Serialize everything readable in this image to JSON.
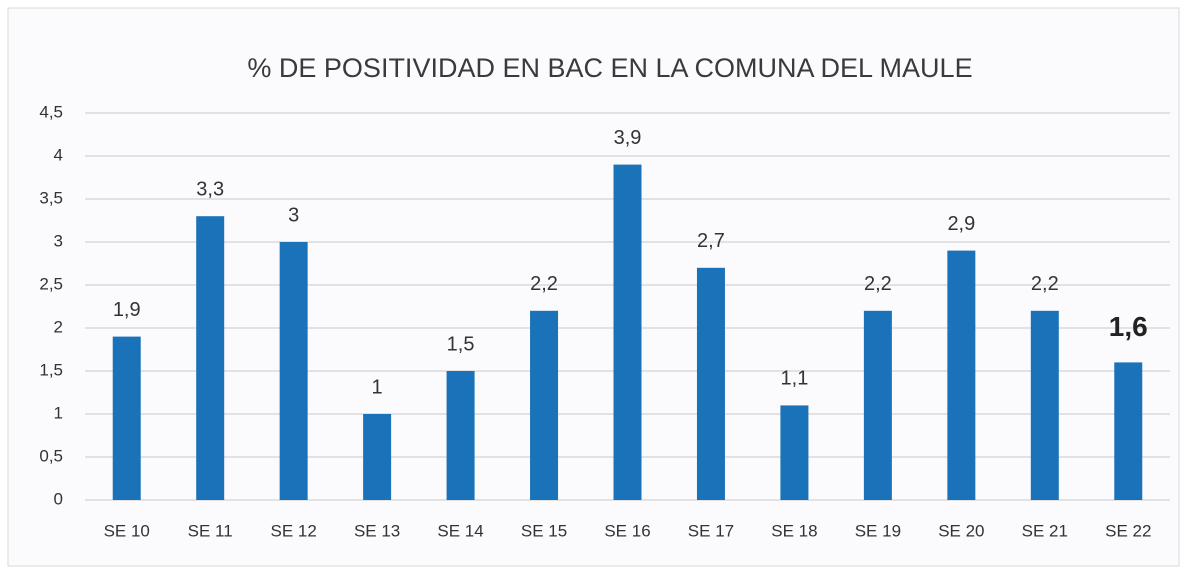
{
  "chart_data": {
    "type": "bar",
    "title": "% DE POSITIVIDAD EN BAC EN LA COMUNA DEL MAULE",
    "categories": [
      "SE 10",
      "SE 11",
      "SE 12",
      "SE 13",
      "SE 14",
      "SE 15",
      "SE 16",
      "SE 17",
      "SE 18",
      "SE 19",
      "SE 20",
      "SE 21",
      "SE 22"
    ],
    "values": [
      1.9,
      3.3,
      3,
      1,
      1.5,
      2.2,
      3.9,
      2.7,
      1.1,
      2.2,
      2.9,
      2.2,
      1.6
    ],
    "value_labels": [
      "1,9",
      "3,3",
      "3",
      "1",
      "1,5",
      "2,2",
      "3,9",
      "2,7",
      "1,1",
      "2,2",
      "2,9",
      "2,2",
      "1,6"
    ],
    "color": "#1a73b8",
    "ylim": [
      0,
      4.5
    ],
    "yticks": [
      0,
      {
        "value": 0.5,
        "label": "0,5"
      },
      1,
      {
        "value": 1.5,
        "label": "1,5"
      },
      2,
      {
        "value": 2.5,
        "label": "2,5"
      },
      3,
      {
        "value": 3.5,
        "label": "3,5"
      },
      4,
      {
        "value": 4.5,
        "label": "4,5"
      }
    ],
    "grid": true
  }
}
